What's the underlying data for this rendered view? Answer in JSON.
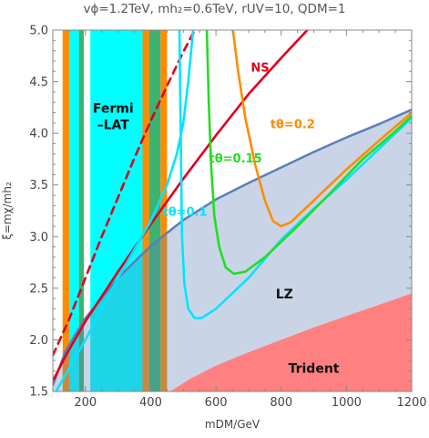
{
  "title": "vϕ=1.2TeV, mh₂=0.6TeV, rUV=10, QDM=1",
  "chart_data": {
    "type": "line",
    "xlabel": "mDM/GeV",
    "ylabel": "ξ=mχ/mh₂",
    "xlim": [
      100,
      1200
    ],
    "ylim": [
      1.5,
      5.0
    ],
    "xticks": [
      200,
      400,
      600,
      800,
      1000,
      1200
    ],
    "yticks": [
      1.5,
      2.0,
      2.5,
      3.0,
      3.5,
      4.0,
      4.5,
      5.0
    ],
    "xtick_labels": [
      "200",
      "400",
      "600",
      "800",
      "1000",
      "1200"
    ],
    "ytick_labels": [
      "1.5",
      "2.0",
      "2.5",
      "3.0",
      "3.5",
      "4.0",
      "4.5",
      "5.0"
    ],
    "regions": [
      {
        "name": "Fermi-LAT",
        "label": "Fermi\n–LAT",
        "color": "#00FFFF",
        "x_bands": [
          [
            150,
            180
          ],
          [
            215,
            375
          ]
        ]
      },
      {
        "name": "orange-bands",
        "color": "#FF8C00",
        "x_bands": [
          [
            130,
            150
          ],
          [
            375,
            395
          ],
          [
            430,
            450
          ]
        ]
      },
      {
        "name": "green-bands",
        "color": "#3CB371",
        "x_bands": [
          [
            180,
            195
          ],
          [
            395,
            430
          ]
        ]
      },
      {
        "name": "LZ",
        "label": "LZ",
        "color": "#c8d4ea",
        "edge_color": "#5b7fb5",
        "boundary": [
          [
            100,
            1.56
          ],
          [
            140,
            1.9
          ],
          [
            200,
            2.21
          ],
          [
            300,
            2.6
          ],
          [
            400,
            2.91
          ],
          [
            500,
            3.16
          ],
          [
            600,
            3.36
          ],
          [
            700,
            3.52
          ],
          [
            800,
            3.67
          ],
          [
            900,
            3.82
          ],
          [
            1000,
            3.96
          ],
          [
            1100,
            4.09
          ],
          [
            1200,
            4.23
          ]
        ]
      },
      {
        "name": "Trident",
        "label": "Trident",
        "color": "#FF8080",
        "boundary": [
          [
            460,
            1.5
          ],
          [
            520,
            1.62
          ],
          [
            600,
            1.75
          ],
          [
            700,
            1.88
          ],
          [
            800,
            2.0
          ],
          [
            900,
            2.12
          ],
          [
            1000,
            2.23
          ],
          [
            1100,
            2.34
          ],
          [
            1200,
            2.45
          ]
        ]
      }
    ],
    "series": [
      {
        "name": "NS",
        "label": "NS",
        "color": "#e0001a",
        "style": "solid",
        "points": [
          [
            100,
            1.6
          ],
          [
            140,
            1.85
          ],
          [
            200,
            2.18
          ],
          [
            300,
            2.66
          ],
          [
            400,
            3.12
          ],
          [
            500,
            3.56
          ],
          [
            600,
            3.98
          ],
          [
            700,
            4.38
          ],
          [
            800,
            4.73
          ],
          [
            880,
            5.0
          ]
        ]
      },
      {
        "name": "NS-dashed",
        "color": "#e0001a",
        "style": "dashed",
        "points": [
          [
            100,
            1.85
          ],
          [
            150,
            2.2
          ],
          [
            200,
            2.6
          ],
          [
            250,
            3.0
          ],
          [
            300,
            3.38
          ],
          [
            350,
            3.76
          ],
          [
            400,
            4.12
          ],
          [
            450,
            4.46
          ],
          [
            500,
            4.79
          ],
          [
            535,
            5.0
          ]
        ]
      },
      {
        "name": "t0.1",
        "label": "tθ=0.1",
        "color": "#00e5ff",
        "style": "solid",
        "points": [
          [
            110,
            1.5
          ],
          [
            200,
            2.0
          ],
          [
            300,
            2.6
          ],
          [
            400,
            3.15
          ],
          [
            450,
            3.5
          ],
          [
            480,
            3.8
          ],
          [
            500,
            4.1
          ],
          [
            515,
            4.5
          ],
          [
            530,
            5.0
          ]
        ]
      },
      {
        "name": "t0.1-valley",
        "color": "#00e5ff",
        "style": "solid",
        "points": [
          [
            488,
            5.0
          ],
          [
            492,
            4.0
          ],
          [
            496,
            3.0
          ],
          [
            503,
            2.55
          ],
          [
            515,
            2.3
          ],
          [
            535,
            2.21
          ],
          [
            555,
            2.21
          ],
          [
            600,
            2.3
          ],
          [
            700,
            2.6
          ],
          [
            800,
            2.97
          ],
          [
            900,
            3.27
          ],
          [
            1000,
            3.55
          ],
          [
            1100,
            3.85
          ],
          [
            1200,
            4.15
          ]
        ]
      },
      {
        "name": "t0.15",
        "label": "tθ=0.15",
        "color": "#22dd22",
        "style": "solid",
        "points": [
          [
            572,
            5.0
          ],
          [
            578,
            4.3
          ],
          [
            585,
            3.7
          ],
          [
            595,
            3.2
          ],
          [
            610,
            2.9
          ],
          [
            630,
            2.7
          ],
          [
            655,
            2.64
          ],
          [
            690,
            2.66
          ],
          [
            750,
            2.8
          ],
          [
            850,
            3.1
          ],
          [
            950,
            3.42
          ],
          [
            1050,
            3.75
          ],
          [
            1150,
            4.02
          ],
          [
            1200,
            4.17
          ]
        ]
      },
      {
        "name": "t0.2",
        "label": "tθ=0.2",
        "color": "#FF8C00",
        "style": "solid",
        "points": [
          [
            652,
            5.0
          ],
          [
            668,
            4.6
          ],
          [
            690,
            4.15
          ],
          [
            720,
            3.7
          ],
          [
            750,
            3.35
          ],
          [
            775,
            3.15
          ],
          [
            800,
            3.1
          ],
          [
            830,
            3.14
          ],
          [
            900,
            3.35
          ],
          [
            1000,
            3.65
          ],
          [
            1100,
            3.93
          ],
          [
            1200,
            4.2
          ]
        ]
      }
    ],
    "annotations": [
      {
        "text": "NS",
        "x": 735,
        "y": 4.6,
        "color": "#e0001a"
      },
      {
        "text": "tθ=0.2",
        "x": 835,
        "y": 4.05,
        "color": "#FF8C00"
      },
      {
        "text": "tθ=0.15",
        "x": 660,
        "y": 3.72,
        "color": "#22dd22"
      },
      {
        "text": "tθ=0.1",
        "x": 505,
        "y": 3.2,
        "color": "#00e5ff"
      },
      {
        "text": "Fermi\n–LAT",
        "x": 285,
        "y": 4.2,
        "color": "#111111"
      },
      {
        "text": "LZ",
        "x": 810,
        "y": 2.4,
        "color": "#111111"
      },
      {
        "text": "Trident",
        "x": 900,
        "y": 1.68,
        "color": "#111111"
      }
    ]
  }
}
